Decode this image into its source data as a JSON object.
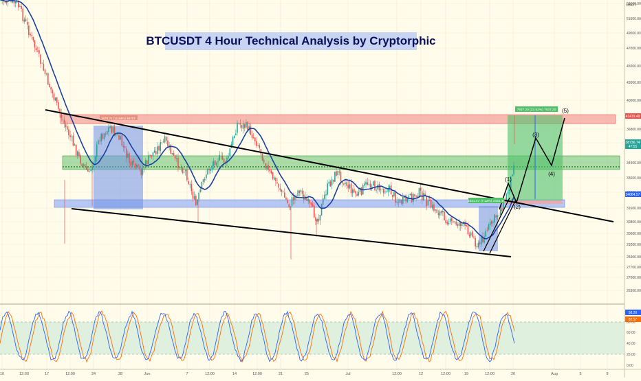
{
  "chart_data": {
    "type": "candlestick",
    "title": "BTCUSDT 4 Hour Technical Analysis by Cryptorphic",
    "currency": "USDT",
    "y_ticks": [
      "53000.00",
      "51000.00",
      "49000.00",
      "47000.00",
      "45000.00",
      "43000.00",
      "40000.00",
      "38000.00",
      "36800.00",
      "35600.00",
      "34400.00",
      "33600.00",
      "32700.00",
      "31600.00",
      "30800.00",
      "30000.00",
      "29200.00",
      "28400.00",
      "27700.00",
      "27000.00",
      "26360.00"
    ],
    "x_ticks": [
      "10",
      "12:00",
      "17",
      "12:00",
      "24",
      "28",
      "Jun",
      "7",
      "12:00",
      "14",
      "12:00",
      "21",
      "25",
      "Jul",
      "12:00",
      "12",
      "12:00",
      "19",
      "12:00",
      "26",
      "Aug",
      "5",
      "9"
    ],
    "price_labels": {
      "resistance": "41419.49",
      "current": "38736.74",
      "countdown": "47:55",
      "support": "34064.57"
    },
    "annotations": {
      "long_target": "7937.20 (23.62%) 7937.20",
      "long_entry": "2431.47 (7.12%) 2431.47",
      "short_label": "4675.71 (11.64%) 46757",
      "waves": [
        "(1)",
        "(2)",
        "(3)",
        "(4)",
        "(5)"
      ]
    },
    "key_levels": {
      "resistance_zone": [
        40500,
        41419.49
      ],
      "mid_zone": [
        35900,
        36900
      ],
      "support_zone": [
        33700,
        34064.57
      ]
    },
    "indicator": {
      "name": "Stochastic RSI",
      "k_value": "58.26",
      "d_value": "82.57",
      "y_ticks": [
        "80.00",
        "60.00",
        "40.00",
        "20.00",
        "0.00"
      ],
      "band": [
        20,
        80
      ]
    }
  },
  "colors": {
    "background": "#fffcec",
    "bull": "#26a69a",
    "bear": "#ef5350",
    "ma": "#1a3fa0",
    "resistance_zone": "#f28b82",
    "mid_zone": "#8bd48b",
    "support_zone": "#a9bdf4",
    "k_line": "#2962ff",
    "d_line": "#ff6d00"
  }
}
